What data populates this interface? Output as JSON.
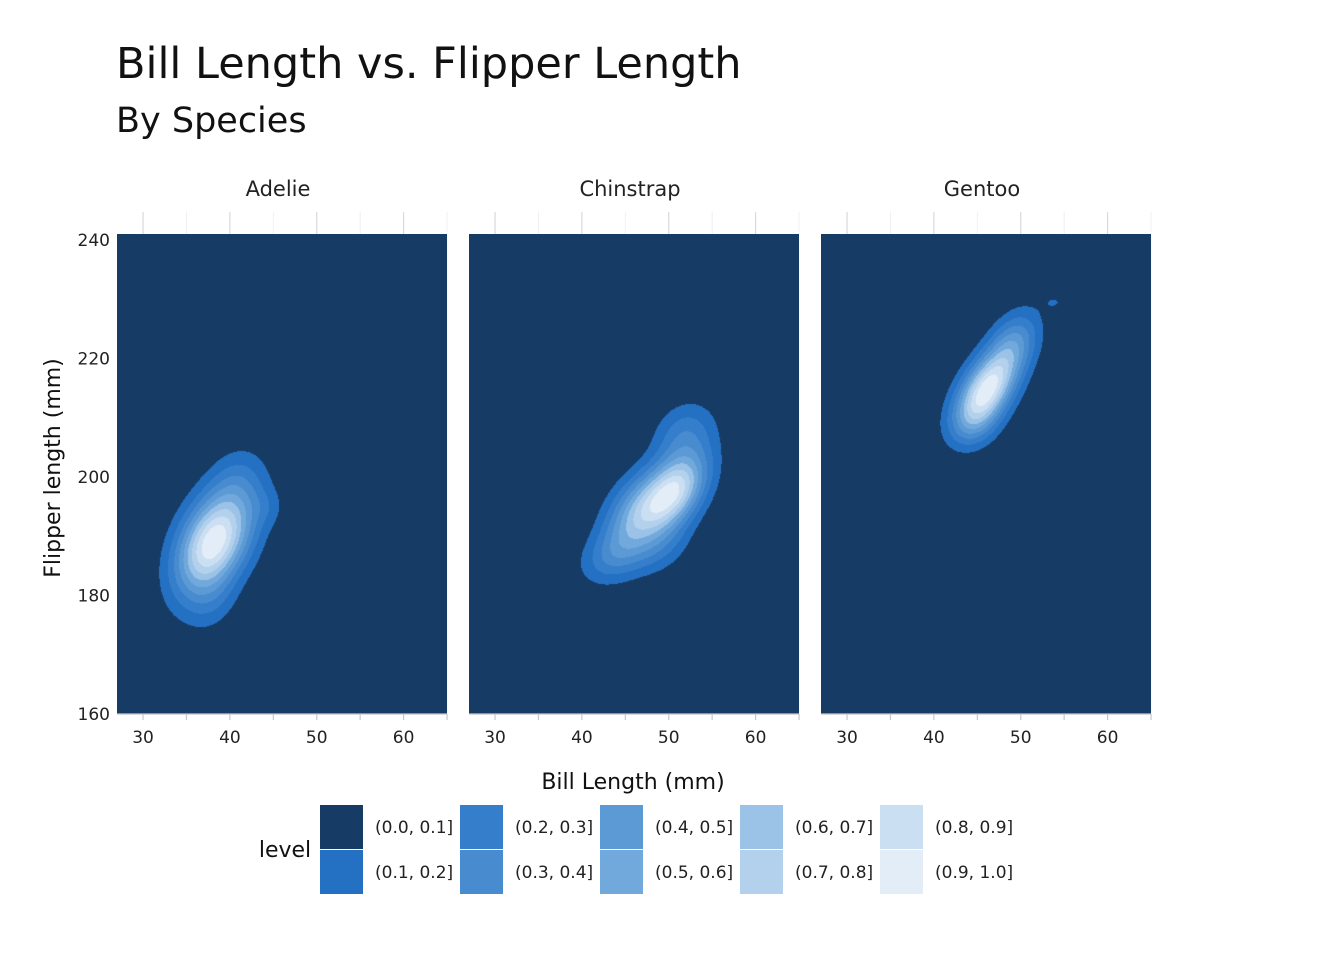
{
  "title": "Bill Length vs. Flipper Length",
  "subtitle": "By Species",
  "chart_data": {
    "type": "heatmap",
    "subtype": "filled-density-contour",
    "xlabel": "Bill Length (mm)",
    "ylabel": "Flipper length (mm)",
    "xlim": [
      27,
      65
    ],
    "ylim": [
      160,
      241
    ],
    "x_ticks": [
      30,
      40,
      50,
      60
    ],
    "y_ticks": [
      160,
      180,
      200,
      220,
      240
    ],
    "grid": true,
    "legend": {
      "title": "level",
      "placement": "bottom",
      "entries": [
        {
          "label": "(0.0, 0.1]",
          "color": "#163c66"
        },
        {
          "label": "(0.1, 0.2]",
          "color": "#2470c3"
        },
        {
          "label": "(0.2, 0.3]",
          "color": "#347ecb"
        },
        {
          "label": "(0.3, 0.4]",
          "color": "#488bcf"
        },
        {
          "label": "(0.4, 0.5]",
          "color": "#5c9ad5"
        },
        {
          "label": "(0.5, 0.6]",
          "color": "#72a9dc"
        },
        {
          "label": "(0.6, 0.7]",
          "color": "#9bc2e7"
        },
        {
          "label": "(0.7, 0.8]",
          "color": "#b3d1ed"
        },
        {
          "label": "(0.8, 0.9]",
          "color": "#cbdff2"
        },
        {
          "label": "(0.9, 1.0]",
          "color": "#e3edf8"
        }
      ]
    },
    "panels": [
      {
        "name": "Adelie",
        "peaks": [
          {
            "x": 38.9,
            "y": 190,
            "sx": 3.0,
            "sy": 5.8,
            "rho": 0.4,
            "w": 1.0
          },
          {
            "x": 37.2,
            "y": 187.5,
            "sx": 2.7,
            "sy": 6.0,
            "rho": 0.35,
            "w": 0.7
          },
          {
            "x": 40.8,
            "y": 199.5,
            "sx": 2.3,
            "sy": 4.0,
            "rho": 0.2,
            "w": 0.22
          },
          {
            "x": 44.3,
            "y": 195,
            "sx": 1.4,
            "sy": 2.2,
            "rho": 0.0,
            "w": 0.12
          },
          {
            "x": 38.0,
            "y": 178.5,
            "sx": 2.0,
            "sy": 3.5,
            "rho": 0.2,
            "w": 0.15
          }
        ]
      },
      {
        "name": "Chinstrap",
        "peaks": [
          {
            "x": 50.6,
            "y": 197.5,
            "sx": 2.6,
            "sy": 4.6,
            "rho": 0.45,
            "w": 1.0
          },
          {
            "x": 46.2,
            "y": 193.5,
            "sx": 2.6,
            "sy": 4.8,
            "rho": 0.4,
            "w": 0.6
          },
          {
            "x": 51.8,
            "y": 207.5,
            "sx": 2.4,
            "sy": 3.6,
            "rho": 0.2,
            "w": 0.28
          },
          {
            "x": 43.5,
            "y": 186.5,
            "sx": 2.6,
            "sy": 3.2,
            "rho": 0.3,
            "w": 0.25
          },
          {
            "x": 49.0,
            "y": 188.0,
            "sx": 2.4,
            "sy": 3.2,
            "rho": 0.3,
            "w": 0.18
          }
        ]
      },
      {
        "name": "Gentoo",
        "peaks": [
          {
            "x": 46.0,
            "y": 214.5,
            "sx": 2.3,
            "sy": 4.2,
            "rho": 0.45,
            "w": 1.0
          },
          {
            "x": 49.0,
            "y": 222.0,
            "sx": 2.1,
            "sy": 4.0,
            "rho": 0.4,
            "w": 0.45
          },
          {
            "x": 44.5,
            "y": 209.0,
            "sx": 2.0,
            "sy": 3.0,
            "rho": 0.2,
            "w": 0.25
          },
          {
            "x": 54.0,
            "y": 229.5,
            "sx": 1.2,
            "sy": 1.2,
            "rho": 0.0,
            "w": 0.1
          }
        ]
      }
    ]
  }
}
